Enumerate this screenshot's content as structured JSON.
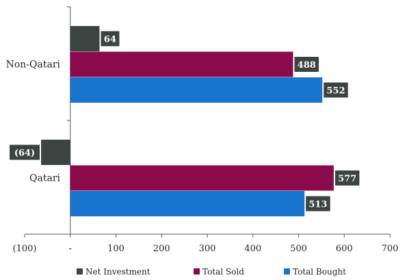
{
  "chart_data": {
    "type": "bar",
    "orientation": "horizontal",
    "categories": [
      "Non-Qatari",
      "Qatari"
    ],
    "series": [
      {
        "name": "Net Investment",
        "color": "#3b4441",
        "values": [
          64,
          -64
        ],
        "labels": [
          "64",
          "(64)"
        ]
      },
      {
        "name": "Total Sold",
        "color": "#8a0a4c",
        "values": [
          488,
          577
        ],
        "labels": [
          "488",
          "577"
        ]
      },
      {
        "name": "Total Bought",
        "color": "#1874cc",
        "values": [
          552,
          513
        ],
        "labels": [
          "552",
          "513"
        ]
      }
    ],
    "xlim": [
      -100,
      700
    ],
    "xticks": [
      {
        "value": -100,
        "label": "(100)"
      },
      {
        "value": 0,
        "label": "-"
      },
      {
        "value": 100,
        "label": "100"
      },
      {
        "value": 200,
        "label": "200"
      },
      {
        "value": 300,
        "label": "300"
      },
      {
        "value": 400,
        "label": "400"
      },
      {
        "value": 500,
        "label": "500"
      },
      {
        "value": 600,
        "label": "600"
      },
      {
        "value": 700,
        "label": "700"
      }
    ],
    "label_box_color": "#3b4441",
    "legend_position": "bottom",
    "grid": false
  }
}
